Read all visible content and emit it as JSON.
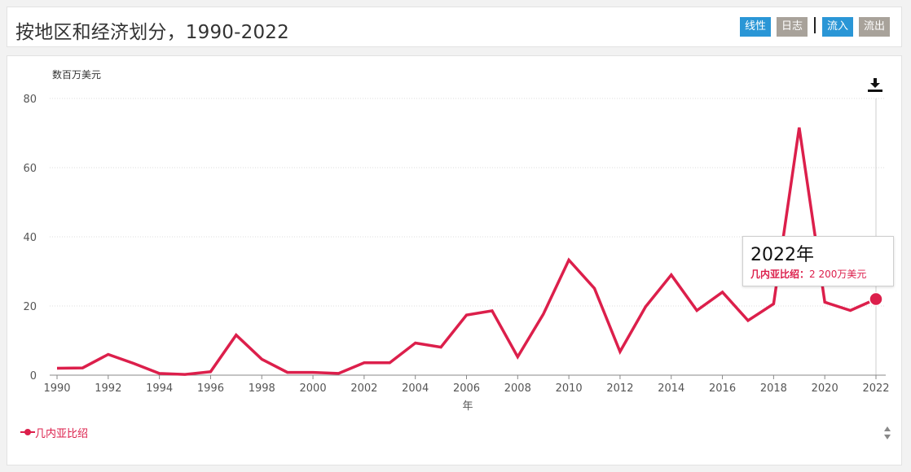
{
  "page": {
    "title": "按地区和经济划分，1990-2022"
  },
  "toolbar": {
    "linear_label": "线性",
    "log_label": "日志",
    "inflow_label": "流入",
    "outflow_label": "流出"
  },
  "colors": {
    "series": "#dc1f4b",
    "button_active": "#2a96d6",
    "button_inactive": "#a8a29a"
  },
  "icons": {
    "download": "download-icon",
    "scroll": "scroll-arrows-icon"
  },
  "tooltip": {
    "year": "2022年",
    "series_label": "几内亚比绍：",
    "value_text": "2 200万美元"
  },
  "chart_data": {
    "type": "line",
    "ylabel": "数百万美元",
    "xlabel": "年",
    "ylim": [
      0,
      80
    ],
    "y_ticks": [
      0,
      20,
      40,
      60,
      80
    ],
    "x_ticks": [
      1990,
      1992,
      1994,
      1996,
      1998,
      2000,
      2002,
      2004,
      2006,
      2008,
      2010,
      2012,
      2014,
      2016,
      2018,
      2020,
      2022
    ],
    "grid": true,
    "legend_position": "bottom-left",
    "x": [
      1990,
      1991,
      1992,
      1993,
      1994,
      1995,
      1996,
      1997,
      1998,
      1999,
      2000,
      2001,
      2002,
      2003,
      2004,
      2005,
      2006,
      2007,
      2008,
      2009,
      2010,
      2011,
      2012,
      2013,
      2014,
      2015,
      2016,
      2017,
      2018,
      2019,
      2020,
      2021,
      2022
    ],
    "series": [
      {
        "name": "几内亚比绍",
        "values": [
          2.0,
          2.1,
          6.0,
          3.4,
          0.5,
          0.2,
          1.0,
          11.6,
          4.6,
          0.8,
          0.8,
          0.5,
          3.6,
          3.6,
          9.3,
          8.1,
          17.4,
          18.6,
          5.3,
          17.6,
          33.3,
          25.1,
          6.8,
          19.8,
          29.0,
          18.7,
          24.0,
          15.8,
          20.6,
          71.6,
          21.1,
          18.7,
          22.0
        ]
      }
    ],
    "highlight_index": 32
  }
}
